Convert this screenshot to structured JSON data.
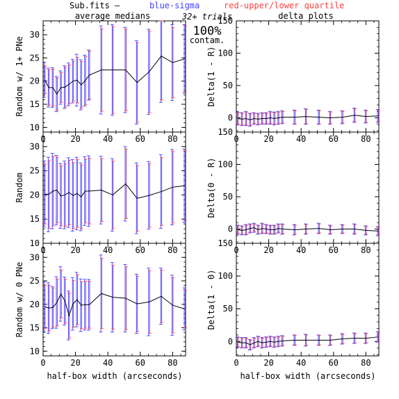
{
  "header": {
    "file_label": "Sub.fits  –",
    "blue_label": "blue-sigma",
    "red_label": "red-upper/lower quartile",
    "left_title": "average medians",
    "right_title": "delta plots",
    "trials_label": "32+ trials",
    "contam_pct": "100%",
    "contam_label": "contam."
  },
  "xlabel": "half-box width (arcseconds)",
  "colors": {
    "line": "#000000",
    "blue": "#4040ff",
    "red": "#ff4040",
    "purple": "#9030b0"
  },
  "chart_data": [
    {
      "type": "line",
      "ylabel": "Random w/ 1+ PNe",
      "xlim": [
        0,
        88
      ],
      "ylim": [
        9,
        33
      ],
      "x_ticks": [
        0,
        20,
        40,
        60,
        80
      ],
      "y_ticks": [
        10,
        15,
        20,
        25,
        30
      ],
      "x_tick_labels": true,
      "x": [
        1,
        3.5,
        6,
        8.5,
        11,
        13.5,
        16,
        18.5,
        21,
        23.5,
        26,
        28.5,
        36,
        43,
        51,
        58,
        65.5,
        73,
        80,
        87.5
      ],
      "y": [
        20.3,
        18.6,
        18.6,
        17.2,
        18.6,
        18.7,
        19.3,
        20.0,
        20.2,
        19.2,
        20.1,
        21.3,
        22.4,
        22.4,
        22.4,
        19.7,
        22.0,
        25.4,
        24.0,
        24.8
      ],
      "sigma": [
        3.8,
        4.2,
        4.3,
        3.8,
        3.6,
        4.6,
        4.6,
        4.7,
        5.6,
        5.4,
        5.5,
        5.4,
        9.5,
        9.8,
        9.2,
        9.0,
        9.2,
        10.0,
        8.2,
        7.4
      ],
      "quartile": [
        3.0,
        3.8,
        4.0,
        3.5,
        3.2,
        4.3,
        4.2,
        4.3,
        4.9,
        5.0,
        5.2,
        5.2,
        8.9,
        9.4,
        8.8,
        8.6,
        8.8,
        9.5,
        7.6,
        7.2
      ]
    },
    {
      "type": "line",
      "ylabel": "Delta(1 - R)",
      "xlim": [
        0,
        88
      ],
      "ylim": [
        -22,
        150
      ],
      "x_ticks": [
        0,
        20,
        40,
        60,
        80
      ],
      "y_ticks": [
        0,
        50,
        100,
        150
      ],
      "x_tick_labels": true,
      "x": [
        1,
        3.5,
        6,
        8.5,
        11,
        13.5,
        16,
        18.5,
        21,
        23.5,
        26,
        28.5,
        36,
        43,
        51,
        58,
        65.5,
        73,
        80,
        87.5
      ],
      "y": [
        -1,
        -2,
        -1,
        -3,
        -1,
        -2,
        -1,
        -1,
        0,
        -1,
        0,
        1,
        1,
        2,
        1,
        0,
        1,
        4,
        2,
        3
      ],
      "sigma": [
        10,
        10,
        11,
        10,
        9,
        9,
        9,
        9,
        10,
        10,
        10,
        10,
        11,
        12,
        11,
        10,
        10,
        11,
        10,
        10
      ],
      "quartile": [
        9,
        9,
        10,
        9,
        8,
        8,
        8,
        8,
        9,
        9,
        9,
        9,
        10,
        11,
        10,
        9,
        9,
        10,
        9,
        9
      ]
    },
    {
      "type": "line",
      "ylabel": "Random",
      "xlim": [
        0,
        88
      ],
      "ylim": [
        10,
        33
      ],
      "x_ticks": [
        0,
        20,
        40,
        60,
        80
      ],
      "y_ticks": [
        10,
        15,
        20,
        25,
        30
      ],
      "x_tick_labels": true,
      "x": [
        1,
        3.5,
        6,
        8.5,
        11,
        13.5,
        16,
        18.5,
        21,
        23.5,
        26,
        28.5,
        36,
        43,
        51,
        58,
        65.5,
        73,
        80,
        87.5
      ],
      "y": [
        20.2,
        20.1,
        20.8,
        21.0,
        19.8,
        20.0,
        20.5,
        19.9,
        20.3,
        19.6,
        20.8,
        20.8,
        21.0,
        20.0,
        22.3,
        19.3,
        19.9,
        20.7,
        21.6,
        21.9
      ],
      "sigma": [
        6.8,
        7.7,
        7.8,
        7.2,
        6.7,
        7.0,
        7.2,
        7.4,
        7.5,
        7.0,
        7.1,
        7.3,
        7.0,
        7.5,
        7.7,
        7.3,
        7.0,
        7.6,
        7.8,
        7.6
      ],
      "quartile": [
        6.2,
        7.0,
        7.2,
        6.8,
        6.2,
        6.5,
        6.7,
        6.8,
        7.0,
        6.6,
        6.6,
        6.8,
        6.5,
        7.0,
        7.2,
        6.8,
        6.6,
        7.0,
        7.4,
        7.2
      ]
    },
    {
      "type": "line",
      "ylabel": "Delta(0 - R)",
      "xlim": [
        0,
        88
      ],
      "ylim": [
        -22,
        150
      ],
      "x_ticks": [
        0,
        20,
        40,
        60,
        80
      ],
      "y_ticks": [
        0,
        50,
        100,
        150
      ],
      "x_tick_labels": true,
      "x": [
        1,
        3.5,
        6,
        8.5,
        11,
        13.5,
        16,
        18.5,
        21,
        23.5,
        26,
        28.5,
        36,
        43,
        51,
        58,
        65.5,
        73,
        80,
        87.5
      ],
      "y": [
        -1,
        -2,
        -1,
        1,
        2,
        -1,
        1,
        0,
        -1,
        -1,
        1,
        0,
        -1,
        0,
        1,
        -1,
        0,
        0,
        -2,
        -3
      ],
      "sigma": [
        7,
        7,
        8,
        7,
        7,
        7,
        8,
        7,
        7,
        7,
        7,
        8,
        8,
        8,
        8,
        7,
        7,
        8,
        7,
        7
      ],
      "quartile": [
        6,
        6,
        7,
        6,
        6,
        6,
        7,
        6,
        6,
        6,
        6,
        7,
        7,
        7,
        7,
        6,
        6,
        7,
        6,
        6
      ]
    },
    {
      "type": "line",
      "ylabel": "Random w/ 0 PNe",
      "xlim": [
        0,
        88
      ],
      "ylim": [
        9,
        33
      ],
      "x_ticks": [
        0,
        20,
        40,
        60,
        80
      ],
      "y_ticks": [
        10,
        15,
        20,
        25,
        30
      ],
      "x_tick_labels": true,
      "x": [
        1,
        3.5,
        6,
        8.5,
        11,
        13.5,
        16,
        18.5,
        21,
        23.5,
        26,
        28.5,
        36,
        43,
        51,
        58,
        65.5,
        73,
        80,
        87.5
      ],
      "y": [
        19.5,
        19.2,
        19.3,
        20.4,
        22.2,
        20.7,
        17.6,
        20.1,
        21.0,
        19.8,
        19.9,
        19.9,
        22.3,
        21.5,
        21.3,
        20.1,
        20.5,
        21.7,
        19.8,
        19.0
      ],
      "sigma": [
        5.3,
        5.4,
        4.5,
        5.5,
        5.8,
        5.1,
        5.2,
        5.6,
        5.8,
        5.6,
        5.4,
        5.4,
        8.2,
        7.4,
        7.2,
        6.3,
        7.2,
        6.0,
        6.4,
        4.5
      ],
      "quartile": [
        4.6,
        4.9,
        4.2,
        5.0,
        5.1,
        4.7,
        4.8,
        5.0,
        5.3,
        5.0,
        5.0,
        5.0,
        7.5,
        6.8,
        6.7,
        5.9,
        6.7,
        5.6,
        5.9,
        4.0
      ]
    },
    {
      "type": "line",
      "ylabel": "Delta(1 - 0)",
      "xlim": [
        0,
        88
      ],
      "ylim": [
        -22,
        150
      ],
      "x_ticks": [
        0,
        20,
        40,
        60,
        80
      ],
      "y_ticks": [
        0,
        50,
        100,
        150
      ],
      "x_tick_labels": true,
      "x": [
        1,
        3.5,
        6,
        8.5,
        11,
        13.5,
        16,
        18.5,
        21,
        23.5,
        26,
        28.5,
        36,
        43,
        51,
        58,
        65.5,
        73,
        80,
        87.5
      ],
      "y": [
        -1,
        -2,
        -2,
        -5,
        -2,
        0,
        -2,
        -1,
        0,
        -1,
        0,
        1,
        2,
        2,
        2,
        2,
        4,
        5,
        5,
        7
      ],
      "sigma": [
        8,
        8,
        8,
        8,
        8,
        8,
        8,
        8,
        8,
        8,
        8,
        8,
        8,
        9,
        8,
        8,
        8,
        8,
        8,
        8
      ],
      "quartile": [
        7,
        7,
        7,
        7,
        7,
        7,
        7,
        7,
        7,
        7,
        7,
        7,
        7,
        8,
        7,
        7,
        7,
        7,
        7,
        7
      ]
    }
  ]
}
